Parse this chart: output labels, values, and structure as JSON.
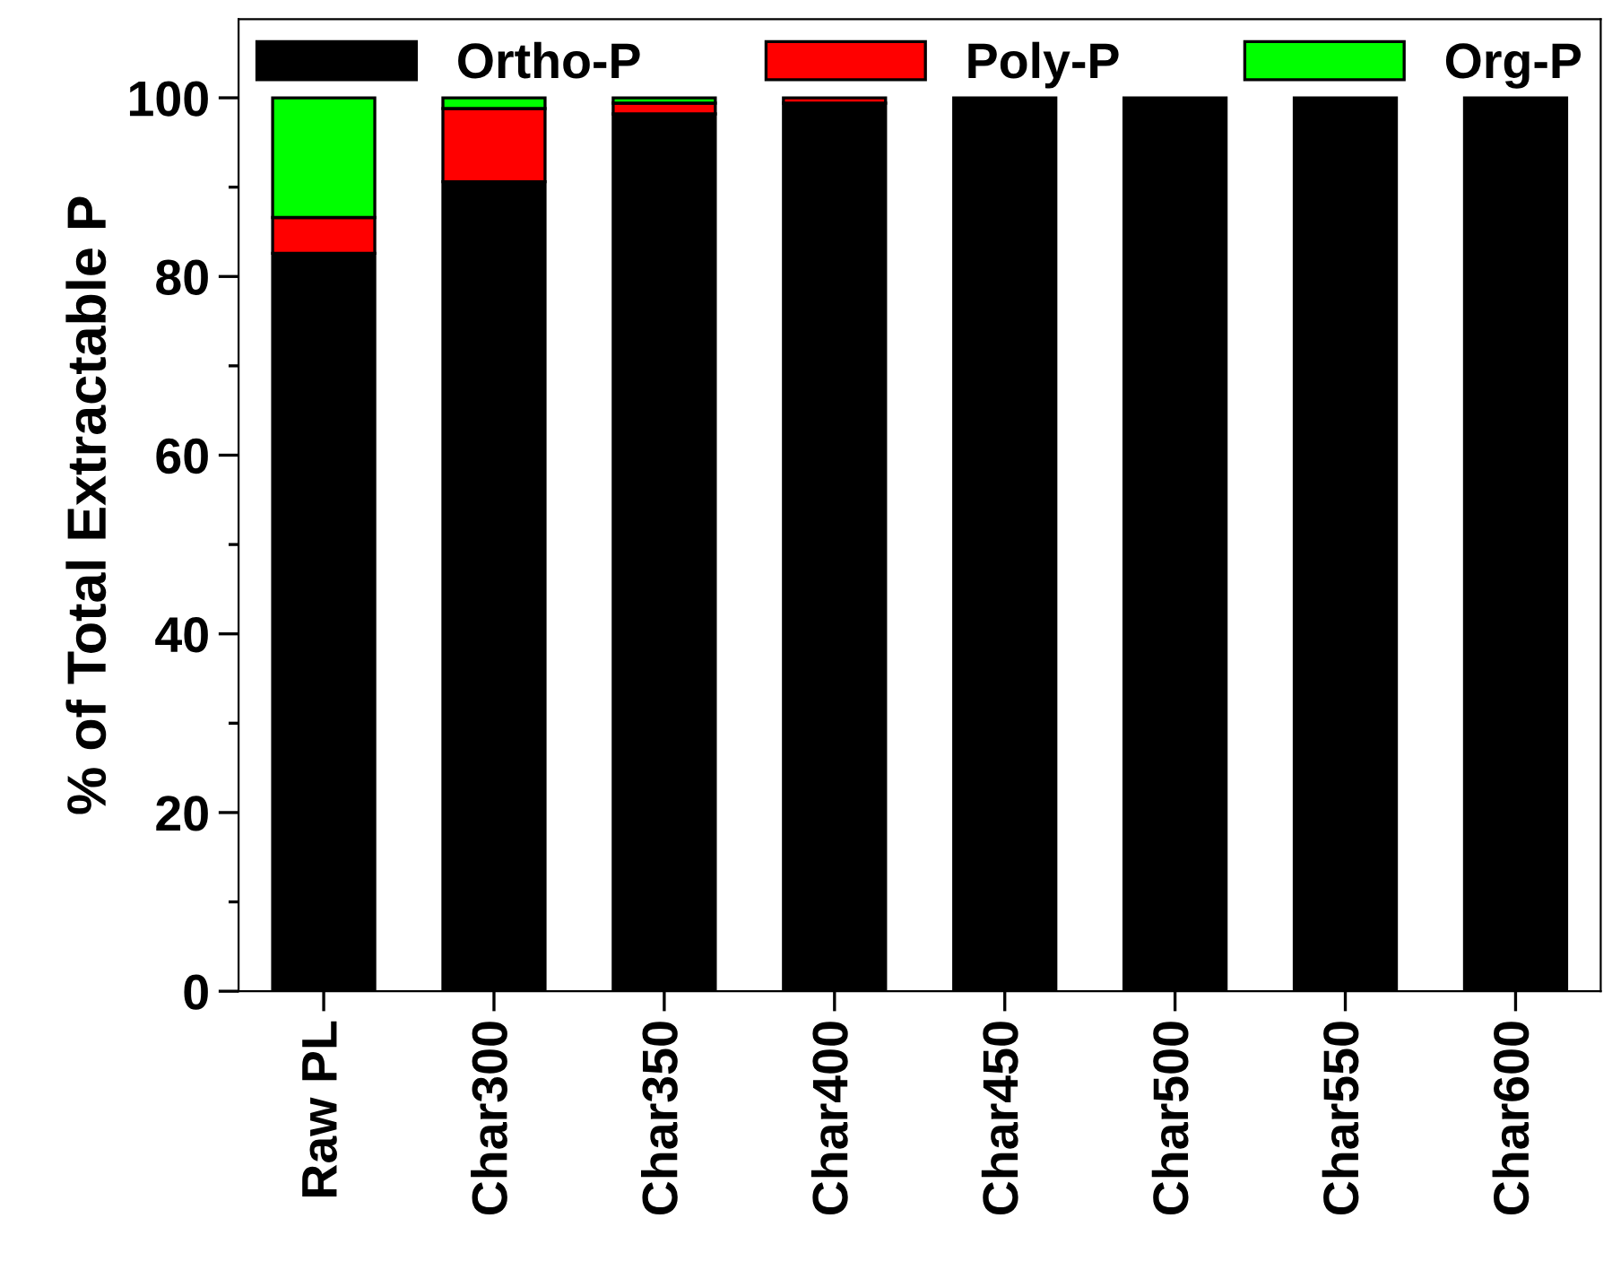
{
  "chart_data": {
    "type": "bar",
    "stacked": true,
    "ylabel": "% of Total Extractable P",
    "categories": [
      "Raw PL",
      "Char300",
      "Char350",
      "Char400",
      "Char450",
      "Char500",
      "Char550",
      "Char600"
    ],
    "series": [
      {
        "name": "Ortho-P",
        "color": "#000000",
        "values": [
          82.6,
          90.6,
          98.2,
          99.4,
          100,
          100,
          100,
          100
        ]
      },
      {
        "name": "Poly-P",
        "color": "#ff0000",
        "values": [
          4.0,
          8.2,
          1.2,
          0.6,
          null,
          null,
          null,
          null
        ]
      },
      {
        "name": "Org-P",
        "color": "#00ff00",
        "values": [
          13.4,
          1.2,
          0.6,
          null,
          null,
          null,
          null,
          null
        ]
      }
    ],
    "ylim": [
      0,
      108.8
    ],
    "yticks": [
      0,
      {
        "value": 10,
        "label": null
      },
      20,
      {
        "value": 30,
        "label": null
      },
      40,
      {
        "value": 50,
        "label": null
      },
      60,
      {
        "value": 70,
        "label": null
      },
      80,
      {
        "value": 90,
        "label": null
      },
      100
    ],
    "grid": false,
    "legend": "top"
  }
}
